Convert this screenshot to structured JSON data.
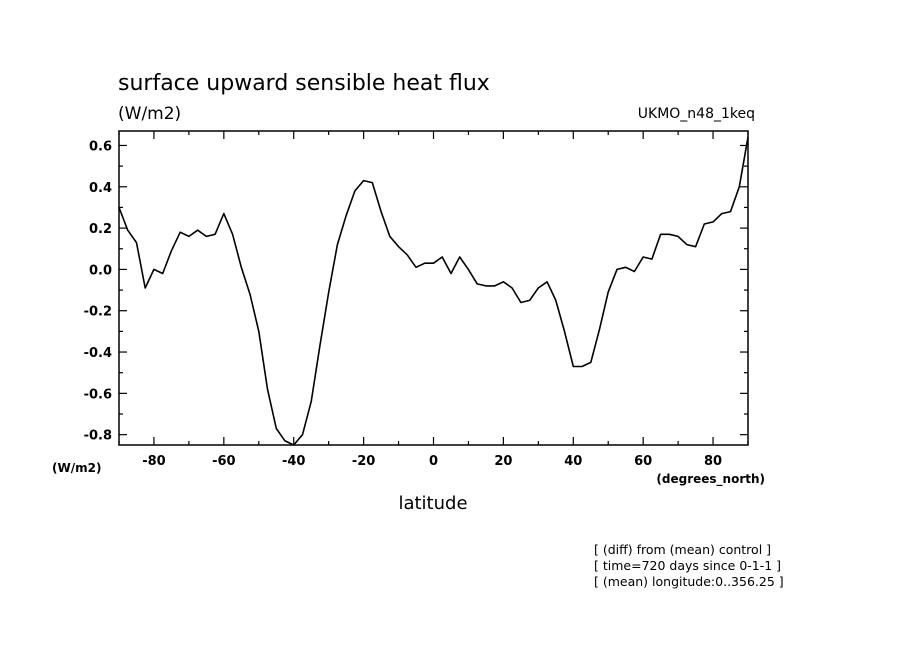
{
  "chart_data": {
    "type": "line",
    "title": "surface upward sensible heat flux",
    "units": "(W/m2)",
    "dataset_label": "UKMO_n48_1keq",
    "ylabel": "(W/m2)",
    "xlabel": "latitude",
    "xunit_label": "(degrees_north)",
    "xlim": [
      -90,
      90
    ],
    "ylim": [
      -0.85,
      0.67
    ],
    "xticks": [
      -80,
      -60,
      -40,
      -20,
      0,
      20,
      40,
      60,
      80
    ],
    "xtick_labels": [
      "-80",
      "-60",
      "-40",
      "-20",
      "0",
      "20",
      "40",
      "60",
      "80"
    ],
    "yticks": [
      -0.8,
      -0.6,
      -0.4,
      -0.2,
      0.0,
      0.2,
      0.4,
      0.6
    ],
    "ytick_labels": [
      "-0.8",
      "-0.6",
      "-0.4",
      "-0.2",
      "0.0",
      "0.2",
      "0.4",
      "0.6"
    ],
    "grid": false,
    "notes": [
      "[ (diff) from (mean) control ]",
      "[ time=720 days since 0-1-1 ]",
      "[ (mean) longitude:0..356.25 ]"
    ],
    "series": [
      {
        "x": [
          -90,
          -87.5,
          -85,
          -82.5,
          -80,
          -77.5,
          -75,
          -72.5,
          -70,
          -67.5,
          -65,
          -62.5,
          -60,
          -57.5,
          -55,
          -52.5,
          -50,
          -47.5,
          -45,
          -42.5,
          -40,
          -37.5,
          -35,
          -32.5,
          -30,
          -27.5,
          -25,
          -22.5,
          -20,
          -17.5,
          -15,
          -12.5,
          -10,
          -7.5,
          -5,
          -2.5,
          0,
          2.5,
          5,
          7.5,
          10,
          12.5,
          15,
          17.5,
          20,
          22.5,
          25,
          27.5,
          30,
          32.5,
          35,
          37.5,
          40,
          42.5,
          45,
          47.5,
          50,
          52.5,
          55,
          57.5,
          60,
          62.5,
          65,
          67.5,
          70,
          72.5,
          75,
          77.5,
          80,
          82.5,
          85,
          87.5,
          90
        ],
        "y": [
          0.3,
          0.19,
          0.13,
          -0.09,
          0.0,
          -0.02,
          0.09,
          0.18,
          0.16,
          0.19,
          0.16,
          0.17,
          0.27,
          0.17,
          0.01,
          -0.12,
          -0.3,
          -0.58,
          -0.77,
          -0.83,
          -0.85,
          -0.8,
          -0.64,
          -0.37,
          -0.11,
          0.12,
          0.26,
          0.38,
          0.43,
          0.42,
          0.28,
          0.16,
          0.11,
          0.07,
          0.01,
          0.03,
          0.03,
          0.06,
          -0.02,
          0.06,
          0.0,
          -0.07,
          -0.08,
          -0.08,
          -0.06,
          -0.09,
          -0.16,
          -0.15,
          -0.09,
          -0.06,
          -0.15,
          -0.3,
          -0.47,
          -0.47,
          -0.45,
          -0.29,
          -0.11,
          0.0,
          0.01,
          -0.01,
          0.06,
          0.05,
          0.17,
          0.17,
          0.16,
          0.12,
          0.11,
          0.22,
          0.23,
          0.27,
          0.28,
          0.4,
          0.64
        ]
      }
    ]
  }
}
